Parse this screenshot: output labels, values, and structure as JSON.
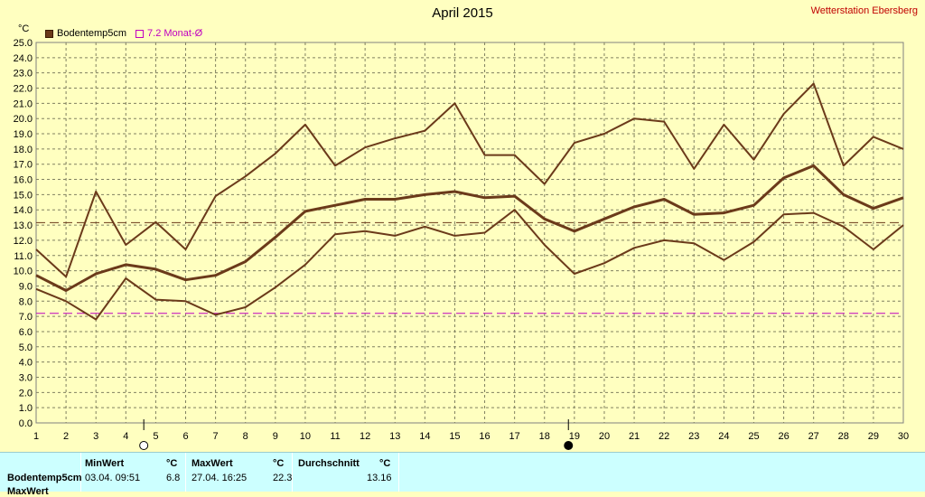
{
  "header": {
    "title": "April 2015",
    "station": "Wetterstation Ebersberg",
    "unit": "°C"
  },
  "legend": {
    "series_label": "Bodentemp5cm",
    "reference_label": "7.2 Monat-Ø"
  },
  "colors": {
    "series": "#6b3a1a",
    "reference": "#c000c0",
    "background": "#ffffc0",
    "panel": "#ccffff"
  },
  "stats": {
    "row_label": "Bodentemp5cm",
    "row_label_2": "MaxWert",
    "min_header": "MinWert",
    "max_header": "MaxWert",
    "avg_header": "Durchschnitt",
    "unit_header": "°C",
    "min_when": "03.04.  09:51",
    "min_value": "6.8",
    "max_when": "27.04.  16:25",
    "max_value": "22.3",
    "avg_value": "13.16"
  },
  "chart_data": {
    "type": "line",
    "title": "April 2015",
    "ylabel": "°C",
    "ylim": [
      0,
      25
    ],
    "ytick_step": 1,
    "xlim": [
      1,
      30
    ],
    "grid": true,
    "legend_position": "top-left",
    "x": [
      1,
      2,
      3,
      4,
      5,
      6,
      7,
      8,
      9,
      10,
      11,
      12,
      13,
      14,
      15,
      16,
      17,
      18,
      19,
      20,
      21,
      22,
      23,
      24,
      25,
      26,
      27,
      28,
      29,
      30
    ],
    "series": [
      {
        "name": "Bodentemp5cm",
        "role": "max",
        "values": [
          11.4,
          9.6,
          15.2,
          11.7,
          13.2,
          11.4,
          14.9,
          16.2,
          17.7,
          19.6,
          16.9,
          18.1,
          18.7,
          19.2,
          21.0,
          17.6,
          17.6,
          15.7,
          18.4,
          19.0,
          20.0,
          19.8,
          16.7,
          19.6,
          17.3,
          20.3,
          22.3,
          16.9,
          18.8,
          18.0
        ]
      },
      {
        "name": "Bodentemp5cm",
        "role": "mean",
        "values": [
          9.7,
          8.7,
          9.8,
          10.4,
          10.1,
          9.4,
          9.7,
          10.6,
          12.2,
          13.9,
          14.3,
          14.7,
          14.7,
          15.0,
          15.2,
          14.8,
          14.9,
          13.4,
          12.6,
          13.4,
          14.2,
          14.7,
          13.7,
          13.8,
          14.3,
          16.1,
          16.9,
          15.0,
          14.1,
          14.8
        ]
      },
      {
        "name": "Bodentemp5cm",
        "role": "min",
        "values": [
          8.8,
          8.0,
          6.8,
          9.5,
          8.1,
          8.0,
          7.1,
          7.6,
          8.9,
          10.4,
          12.4,
          12.6,
          12.3,
          12.9,
          12.3,
          12.5,
          14.0,
          11.7,
          9.8,
          10.5,
          11.5,
          12.0,
          11.8,
          10.7,
          11.9,
          13.7,
          13.8,
          12.9,
          11.4,
          13.0
        ]
      }
    ],
    "reference_lines": [
      {
        "name": "7.2 Monat-Ø",
        "value": 7.2,
        "color": "#c000c0"
      },
      {
        "name": "Durchschnitt",
        "value": 13.16,
        "color": "#6b3a1a"
      }
    ],
    "x_markers": [
      {
        "x": 4.6,
        "symbol": "open-circle"
      },
      {
        "x": 18.8,
        "symbol": "filled-circle"
      }
    ]
  }
}
